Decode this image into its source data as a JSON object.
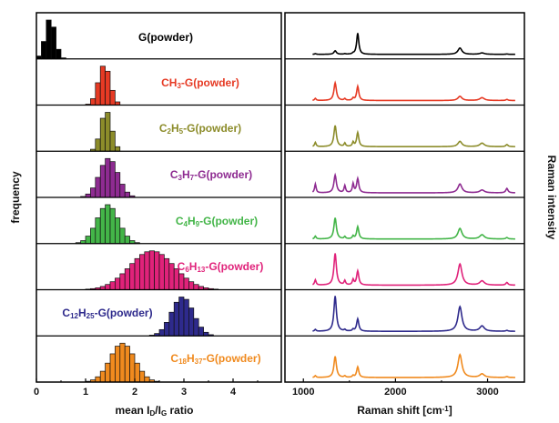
{
  "chart_data": [
    {
      "type": "histogram-stack",
      "xlabel_parts": [
        {
          "t": "mean I",
          "s": "n"
        },
        {
          "t": "D",
          "s": "sub"
        },
        {
          "t": "/I",
          "s": "n"
        },
        {
          "t": "G",
          "s": "sub"
        },
        {
          "t": " ratio",
          "s": "n"
        }
      ],
      "ylabel": "frequency",
      "xlim": [
        0,
        5
      ],
      "xticks": [
        "0",
        "1",
        "2",
        "3",
        "4"
      ],
      "panels": [
        {
          "color": "#000000",
          "mean": 0.28,
          "sd": 0.1,
          "label_parts": [
            {
              "t": "G(powder)",
              "s": "n"
            }
          ]
        },
        {
          "color": "#e63a24",
          "mean": 1.38,
          "sd": 0.12,
          "label_parts": [
            {
              "t": "CH",
              "s": "n"
            },
            {
              "t": "3",
              "s": "sub"
            },
            {
              "t": "-G(powder)",
              "s": "n"
            }
          ]
        },
        {
          "color": "#8c8c2a",
          "mean": 1.42,
          "sd": 0.11,
          "label_parts": [
            {
              "t": "C",
              "s": "n"
            },
            {
              "t": "2",
              "s": "sub"
            },
            {
              "t": "H",
              "s": "n"
            },
            {
              "t": "5",
              "s": "sub"
            },
            {
              "t": "-G(powder)",
              "s": "n"
            }
          ]
        },
        {
          "color": "#8e2b91",
          "mean": 1.47,
          "sd": 0.19,
          "label_parts": [
            {
              "t": "C",
              "s": "n"
            },
            {
              "t": "3",
              "s": "sub"
            },
            {
              "t": "H",
              "s": "n"
            },
            {
              "t": "7",
              "s": "sub"
            },
            {
              "t": "-G(powder)",
              "s": "n"
            }
          ]
        },
        {
          "color": "#43b548",
          "mean": 1.45,
          "sd": 0.22,
          "label_parts": [
            {
              "t": "C",
              "s": "n"
            },
            {
              "t": "4",
              "s": "sub"
            },
            {
              "t": "H",
              "s": "n"
            },
            {
              "t": "9",
              "s": "sub"
            },
            {
              "t": "-G(powder)",
              "s": "n"
            }
          ]
        },
        {
          "color": "#e0227a",
          "mean": 2.35,
          "sd": 0.45,
          "label_parts": [
            {
              "t": "C",
              "s": "n"
            },
            {
              "t": "6",
              "s": "sub"
            },
            {
              "t": "H",
              "s": "n"
            },
            {
              "t": "13",
              "s": "sub"
            },
            {
              "t": "-G(powder)",
              "s": "n"
            }
          ]
        },
        {
          "color": "#2e2a8c",
          "mean": 2.97,
          "sd": 0.22,
          "label_parts": [
            {
              "t": "C",
              "s": "n"
            },
            {
              "t": "12",
              "s": "sub"
            },
            {
              "t": "H",
              "s": "n"
            },
            {
              "t": "25",
              "s": "sub"
            },
            {
              "t": "-G(powder)",
              "s": "n"
            }
          ]
        },
        {
          "color": "#f08a1e",
          "mean": 1.75,
          "sd": 0.25,
          "label_parts": [
            {
              "t": "C",
              "s": "n"
            },
            {
              "t": "18",
              "s": "sub"
            },
            {
              "t": "H",
              "s": "n"
            },
            {
              "t": "37",
              "s": "sub"
            },
            {
              "t": "-G(powder)",
              "s": "n"
            }
          ]
        }
      ]
    },
    {
      "type": "line-stack",
      "xlabel_parts": [
        {
          "t": "Raman shift [cm",
          "s": "n"
        },
        {
          "t": "-1",
          "s": "sup"
        },
        {
          "t": "]",
          "s": "n"
        }
      ],
      "ylabel": "Raman intensity",
      "xlim": [
        800,
        3400
      ],
      "xticks": [
        1000,
        2000,
        3000
      ],
      "peak_positions": {
        "D": 1345,
        "G": 1590,
        "2D": 2700,
        "DG": 2940
      },
      "spectra": [
        {
          "color": "#000000",
          "D": 0.1,
          "G": 0.6,
          "D2": 0.18,
          "DG": 0.04,
          "extra": 0.02
        },
        {
          "color": "#e63a24",
          "D": 0.5,
          "G": 0.4,
          "D2": 0.12,
          "DG": 0.08,
          "extra": 0.06
        },
        {
          "color": "#8c8c2a",
          "D": 0.6,
          "G": 0.4,
          "D2": 0.15,
          "DG": 0.1,
          "extra": 0.12
        },
        {
          "color": "#8e2b91",
          "D": 0.5,
          "G": 0.4,
          "D2": 0.25,
          "DG": 0.08,
          "extra": 0.25
        },
        {
          "color": "#43b548",
          "D": 0.6,
          "G": 0.35,
          "D2": 0.3,
          "DG": 0.12,
          "extra": 0.08
        },
        {
          "color": "#e0227a",
          "D": 0.9,
          "G": 0.4,
          "D2": 0.6,
          "DG": 0.12,
          "extra": 0.15
        },
        {
          "color": "#2e2a8c",
          "D": 1.0,
          "G": 0.35,
          "D2": 0.7,
          "DG": 0.15,
          "extra": 0.05
        },
        {
          "color": "#f08a1e",
          "D": 0.6,
          "G": 0.3,
          "D2": 0.65,
          "DG": 0.1,
          "extra": 0.05
        }
      ]
    }
  ]
}
